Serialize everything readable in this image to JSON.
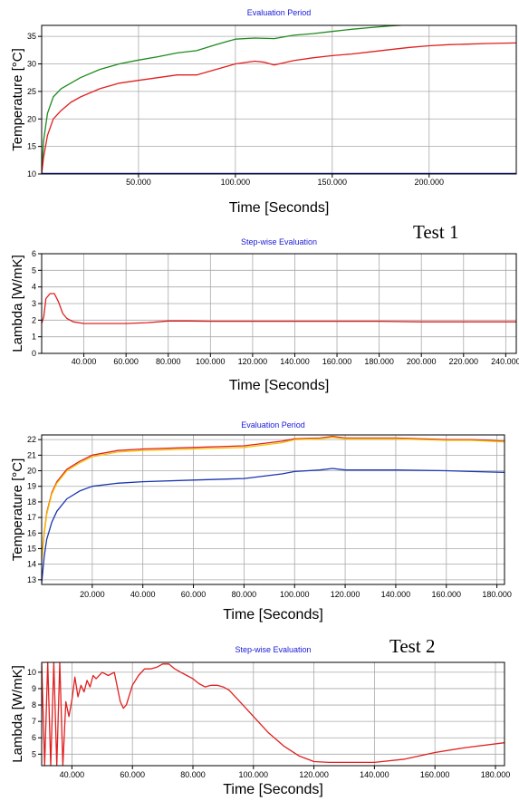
{
  "chart_data": [
    {
      "type": "line",
      "title": "Evaluation Period",
      "xlabel": "Time [Seconds]",
      "ylabel": "Temperature [°C]",
      "xlim": [
        0,
        245000
      ],
      "ylim": [
        10,
        37
      ],
      "x_ticks": [
        50000,
        100000,
        150000,
        200000
      ],
      "x_tick_labels": [
        "50.000",
        "100.000",
        "150.000",
        "200.000"
      ],
      "y_ticks": [
        10,
        15,
        20,
        25,
        30,
        35
      ],
      "y_tick_labels": [
        "10",
        "15",
        "20",
        "25",
        "30",
        "35"
      ],
      "grid": true,
      "test_label": "Test 1",
      "series": [
        {
          "color": "#1f8a1f",
          "x": [
            0,
            1000,
            3000,
            6000,
            10000,
            15000,
            20000,
            30000,
            40000,
            50000,
            60000,
            70000,
            80000,
            90000,
            100000,
            110000,
            120000,
            130000,
            140000,
            150000,
            160000,
            170000,
            180000,
            190000,
            200000,
            210000,
            220000,
            230000,
            245000
          ],
          "y": [
            10,
            16,
            21,
            24,
            25.5,
            26.5,
            27.5,
            29,
            30,
            30.7,
            31.3,
            32,
            32.4,
            33.5,
            34.5,
            34.7,
            34.6,
            35.2,
            35.5,
            35.9,
            36.3,
            36.6,
            36.9,
            37.1,
            37.2,
            37.3,
            37.4,
            37.4,
            37.5
          ]
        },
        {
          "color": "#e02020",
          "x": [
            0,
            1000,
            3000,
            6000,
            10000,
            15000,
            20000,
            30000,
            40000,
            50000,
            60000,
            70000,
            80000,
            90000,
            100000,
            110000,
            115000,
            120000,
            130000,
            140000,
            150000,
            160000,
            170000,
            180000,
            190000,
            200000,
            210000,
            220000,
            230000,
            245000
          ],
          "y": [
            10,
            13,
            17,
            20,
            21.5,
            23,
            24,
            25.5,
            26.5,
            27,
            27.5,
            28,
            28,
            29,
            30,
            30.5,
            30.3,
            29.8,
            30.6,
            31.1,
            31.5,
            31.8,
            32.2,
            32.6,
            33,
            33.3,
            33.5,
            33.6,
            33.7,
            33.8
          ]
        },
        {
          "color": "#1a2aa8",
          "x": [
            0,
            245000
          ],
          "y": [
            10.1,
            10.1
          ]
        }
      ]
    },
    {
      "type": "line",
      "title": "Step-wise Evaluation",
      "xlabel": "Time [Seconds]",
      "ylabel": "Lambda [W/mK]",
      "xlim": [
        20000,
        245000
      ],
      "ylim": [
        0,
        6
      ],
      "x_ticks": [
        40000,
        60000,
        80000,
        100000,
        120000,
        140000,
        160000,
        180000,
        200000,
        220000,
        240000
      ],
      "x_tick_labels": [
        "40.000",
        "60.000",
        "80.000",
        "100.000",
        "120.000",
        "140.000",
        "160.000",
        "180.000",
        "200.000",
        "220.000",
        "240.000"
      ],
      "y_ticks": [
        0,
        1,
        2,
        3,
        4,
        5,
        6
      ],
      "y_tick_labels": [
        "0",
        "1",
        "2",
        "3",
        "4",
        "5",
        "6"
      ],
      "grid": true,
      "series": [
        {
          "color": "#e02020",
          "x": [
            20000,
            21000,
            22000,
            24000,
            26000,
            28000,
            30000,
            32000,
            35000,
            40000,
            50000,
            60000,
            70000,
            80000,
            90000,
            100000,
            120000,
            140000,
            160000,
            180000,
            200000,
            220000,
            245000
          ],
          "y": [
            1.8,
            2.2,
            3.3,
            3.6,
            3.6,
            3.1,
            2.4,
            2.1,
            1.9,
            1.8,
            1.8,
            1.8,
            1.85,
            1.95,
            1.95,
            1.93,
            1.93,
            1.93,
            1.93,
            1.93,
            1.9,
            1.9,
            1.9
          ]
        }
      ]
    },
    {
      "type": "line",
      "title": "Evaluation Period",
      "xlabel": "Time [Seconds]",
      "ylabel": "Temperature [°C]",
      "xlim": [
        0,
        183000
      ],
      "ylim": [
        12.7,
        22.3
      ],
      "x_ticks": [
        20000,
        40000,
        60000,
        80000,
        100000,
        120000,
        140000,
        160000,
        180000
      ],
      "x_tick_labels": [
        "20.000",
        "40.000",
        "60.000",
        "80.000",
        "100.000",
        "120.000",
        "140.000",
        "160.000",
        "180.000"
      ],
      "y_ticks": [
        13,
        14,
        15,
        16,
        17,
        18,
        19,
        20,
        21,
        22
      ],
      "y_tick_labels": [
        "13",
        "14",
        "15",
        "16",
        "17",
        "18",
        "19",
        "20",
        "21",
        "22"
      ],
      "grid": true,
      "series": [
        {
          "color": "#e02020",
          "x": [
            0,
            1000,
            2000,
            4000,
            6000,
            10000,
            15000,
            20000,
            30000,
            40000,
            60000,
            80000,
            95000,
            100000,
            110000,
            115000,
            120000,
            140000,
            160000,
            170000,
            183000
          ],
          "y": [
            14.3,
            16,
            17.3,
            18.6,
            19.3,
            20.1,
            20.6,
            21,
            21.3,
            21.4,
            21.5,
            21.6,
            21.9,
            22.05,
            22.1,
            22.2,
            22.1,
            22.1,
            22,
            22,
            21.9
          ]
        },
        {
          "color": "#f2c300",
          "x": [
            0,
            1000,
            2000,
            4000,
            6000,
            10000,
            15000,
            20000,
            30000,
            40000,
            60000,
            80000,
            95000,
            100000,
            110000,
            115000,
            120000,
            140000,
            160000,
            170000,
            183000
          ],
          "y": [
            14.2,
            15.9,
            17.2,
            18.5,
            19.2,
            20,
            20.5,
            20.9,
            21.2,
            21.3,
            21.4,
            21.5,
            21.8,
            22,
            22.05,
            22.15,
            22.05,
            22.05,
            21.95,
            21.95,
            21.85
          ]
        },
        {
          "color": "#1a35b0",
          "x": [
            0,
            1000,
            2000,
            4000,
            6000,
            10000,
            15000,
            20000,
            30000,
            40000,
            60000,
            80000,
            95000,
            100000,
            110000,
            115000,
            120000,
            140000,
            160000,
            170000,
            183000
          ],
          "y": [
            12.8,
            14.5,
            15.6,
            16.7,
            17.4,
            18.2,
            18.7,
            19,
            19.2,
            19.3,
            19.4,
            19.5,
            19.8,
            19.95,
            20.05,
            20.15,
            20.05,
            20.05,
            20,
            19.95,
            19.9
          ]
        }
      ]
    },
    {
      "type": "line",
      "title": "Step-wise Evaluation",
      "xlabel": "Time [Seconds]",
      "ylabel": "Lambda [W/mK]",
      "xlim": [
        30000,
        183000
      ],
      "ylim": [
        4.3,
        10.6
      ],
      "x_ticks": [
        40000,
        60000,
        80000,
        100000,
        120000,
        140000,
        160000,
        180000
      ],
      "x_tick_labels": [
        "40.000",
        "60.000",
        "80.000",
        "100.000",
        "120.000",
        "140.000",
        "160.000",
        "180.000"
      ],
      "y_ticks": [
        5,
        6,
        7,
        8,
        9,
        10
      ],
      "y_tick_labels": [
        "5",
        "6",
        "7",
        "8",
        "9",
        "10"
      ],
      "grid": true,
      "test_label": "Test 2",
      "series": [
        {
          "color": "#e02020",
          "x": [
            30000,
            31000,
            32000,
            33000,
            34000,
            35000,
            36000,
            37000,
            38000,
            39000,
            40000,
            41000,
            42000,
            43000,
            44000,
            45000,
            46000,
            47000,
            48000,
            50000,
            52000,
            54000,
            56000,
            57000,
            58000,
            60000,
            62000,
            64000,
            66000,
            68000,
            70000,
            72000,
            74000,
            76000,
            78000,
            80000,
            82000,
            84000,
            86000,
            88000,
            90000,
            92000,
            95000,
            100000,
            105000,
            110000,
            115000,
            120000,
            125000,
            130000,
            140000,
            150000,
            160000,
            170000,
            183000
          ],
          "y": [
            10.6,
            4.3,
            10.6,
            4.3,
            10.6,
            4.3,
            10.6,
            4.3,
            8.2,
            7.3,
            8.3,
            9.7,
            8.5,
            9.2,
            8.8,
            9.5,
            9.1,
            9.8,
            9.6,
            10,
            9.8,
            10,
            8.2,
            7.8,
            8,
            9.2,
            9.8,
            10.2,
            10.2,
            10.3,
            10.5,
            10.5,
            10.2,
            10,
            9.8,
            9.6,
            9.3,
            9.1,
            9.2,
            9.2,
            9.1,
            8.9,
            8.3,
            7.3,
            6.3,
            5.5,
            4.9,
            4.55,
            4.5,
            4.5,
            4.5,
            4.7,
            5.1,
            5.4,
            5.7
          ]
        }
      ]
    }
  ]
}
